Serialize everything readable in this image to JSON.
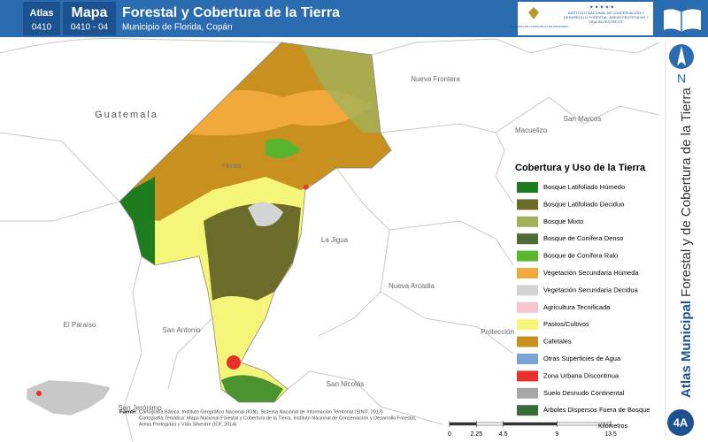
{
  "header": {
    "atlas_label": "Atlas",
    "atlas_code": "0410",
    "map_label": "Mapa",
    "map_code": "0410 - 04",
    "title": "Forestal y Cobertura de la Tierra",
    "subtitle": "Municipio de Florida, Copán",
    "logo_left": "GOBIERNO DE LA REPÚBLICA DE HONDURAS",
    "logo_right": "INSTITUTO NACIONAL DE CONSERVACIÓN Y DESARROLLO FORESTAL, ÁREAS PROTEGIDAS Y VIDA SILVESTRE ICF"
  },
  "side": {
    "north": "N",
    "atlas_municipal": "Atlas Municipal",
    "theme": "Forestal y de Cobertura de la Tierra",
    "sheet": "4A"
  },
  "legend": {
    "title": "Cobertura y Uso de la Tierra",
    "items": [
      {
        "label": "Bosque Latifoliado Húmedo",
        "color": "#1e7b1e"
      },
      {
        "label": "Bosque Latifoliado Deciduo",
        "color": "#6b6b2a"
      },
      {
        "label": "Bosque Mixto",
        "color": "#a3b05a"
      },
      {
        "label": "Bosque de Conífera Denso",
        "color": "#4f6b3a"
      },
      {
        "label": "Bosque de Conífera Ralo",
        "color": "#5ab52e"
      },
      {
        "label": "Vegetación Secundaria Húmeda",
        "color": "#f2a93b"
      },
      {
        "label": "Vegetación Secundaria Decidua",
        "color": "#d4d4d4"
      },
      {
        "label": "Agricultura Tecnificada",
        "color": "#f7c6d0"
      },
      {
        "label": "Pastos/Cultivos",
        "color": "#f5f57a"
      },
      {
        "label": "Cafetales",
        "color": "#c8901e"
      },
      {
        "label": "Otras Superficies de Agua",
        "color": "#7ba3d6"
      },
      {
        "label": "Zona Urbana Discontinua",
        "color": "#e8312b"
      },
      {
        "label": "Suelo Desnudo Continental",
        "color": "#a6a6a6"
      },
      {
        "label": "Árboles Dispersos Fuera de Bosque",
        "color": "#3a6b3a"
      }
    ]
  },
  "places": [
    "Guatemala",
    "Nueva Frontera",
    "San Marcos",
    "Macuelizo",
    "Florida",
    "La Jigua",
    "Nueva Arcadia",
    "El Paraíso",
    "San Antonio",
    "Protección",
    "San Nicolás",
    "San Jerónimo"
  ],
  "source": {
    "label": "Fuente:",
    "lines": [
      "Cartografía Básica: Instituto Geográfico Nacional (IGN), Sistema Nacional de Información Territorial (SINIT, 2013)",
      "Cartografía Temática: Mapa Nacional Forestal y Cobertura de la Tierra, Instituto Nacional de Conservación y Desarrollo Forestal,",
      "Áreas Protegidas y Vida Silvestre (ICF, 2014)"
    ]
  },
  "scale": {
    "ticks": [
      0,
      2.25,
      4.5,
      9,
      13.5
    ],
    "unit": "Kilómetros"
  }
}
